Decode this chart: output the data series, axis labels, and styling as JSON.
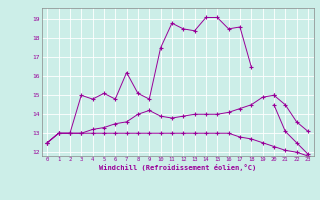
{
  "title": "",
  "xlabel": "Windchill (Refroidissement éolien,°C)",
  "ylabel": "",
  "background_color": "#cceee8",
  "grid_color": "#ffffff",
  "line_color": "#990099",
  "xlim": [
    -0.5,
    23.5
  ],
  "ylim": [
    11.8,
    19.6
  ],
  "yticks": [
    12,
    13,
    14,
    15,
    16,
    17,
    18,
    19
  ],
  "xticks": [
    0,
    1,
    2,
    3,
    4,
    5,
    6,
    7,
    8,
    9,
    10,
    11,
    12,
    13,
    14,
    15,
    16,
    17,
    18,
    19,
    20,
    21,
    22,
    23
  ],
  "series": [
    [
      12.5,
      13.0,
      13.0,
      15.0,
      14.8,
      15.1,
      14.8,
      16.2,
      15.1,
      14.8,
      17.5,
      18.8,
      18.5,
      18.4,
      19.1,
      19.1,
      18.5,
      18.6,
      16.5,
      null,
      null,
      null,
      null,
      null
    ],
    [
      null,
      null,
      null,
      null,
      null,
      null,
      null,
      null,
      null,
      null,
      null,
      null,
      null,
      null,
      null,
      null,
      null,
      null,
      null,
      null,
      14.5,
      13.1,
      12.5,
      11.9
    ],
    [
      12.5,
      13.0,
      13.0,
      13.0,
      13.2,
      13.3,
      13.5,
      13.6,
      14.0,
      14.2,
      13.9,
      13.8,
      13.9,
      14.0,
      14.0,
      14.0,
      14.1,
      14.3,
      14.5,
      14.9,
      15.0,
      null,
      null,
      null
    ],
    [
      null,
      null,
      null,
      null,
      null,
      null,
      null,
      null,
      null,
      null,
      null,
      null,
      null,
      null,
      null,
      null,
      null,
      null,
      null,
      null,
      15.0,
      14.5,
      13.6,
      13.1
    ],
    [
      12.5,
      13.0,
      13.0,
      13.0,
      13.0,
      13.0,
      13.0,
      13.0,
      13.0,
      13.0,
      13.0,
      13.0,
      13.0,
      13.0,
      13.0,
      13.0,
      13.0,
      12.8,
      12.7,
      12.5,
      12.3,
      12.1,
      12.0,
      11.8
    ]
  ]
}
